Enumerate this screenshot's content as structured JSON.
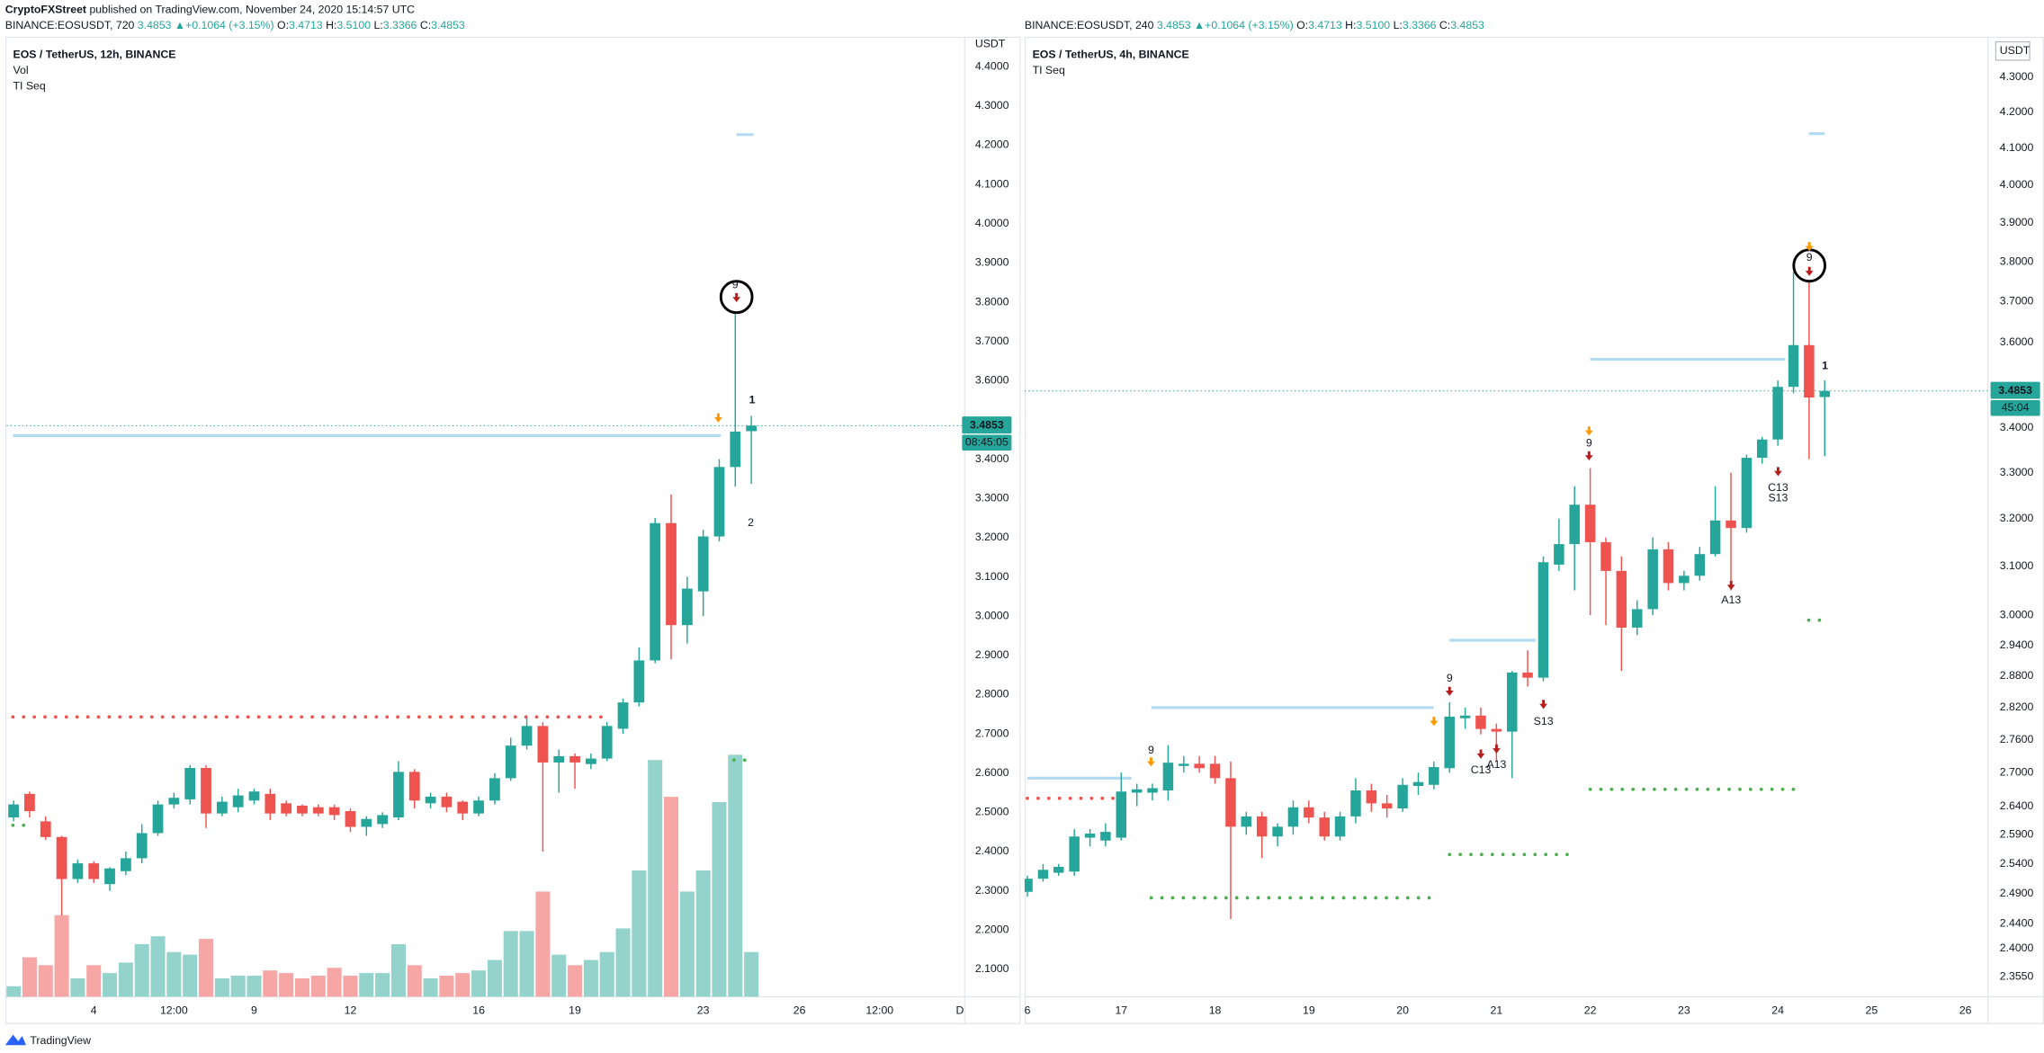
{
  "header": {
    "publisher": "CryptoFXStreet",
    "published": "published on TradingView.com, November 24, 2020 15:14:57 UTC"
  },
  "footer": {
    "brand": "TradingView"
  },
  "chart_data": [
    {
      "type": "candlestick",
      "symbol": "BINANCE:EOSUSDT, 720",
      "quote": {
        "last": "3.4853",
        "change": "▲+0.1064 (+3.15%)",
        "ohlc": [
          {
            "label": "O:",
            "value": "3.4713"
          },
          {
            "label": "H:",
            "value": "3.5100"
          },
          {
            "label": "L:",
            "value": "3.3366"
          },
          {
            "label": "C:",
            "value": "3.4853"
          }
        ]
      },
      "legend": [
        "EOS / TetherUS, 12h, BINANCE",
        "Vol",
        "TI Seq"
      ],
      "currency": "USDT",
      "countdown": "08:45:05",
      "up_color": "#26a69a",
      "down_color": "#ef5350",
      "volume_up_color": "#93d3cc",
      "volume_down_color": "#f5a6a5",
      "log": false,
      "grid": false,
      "x": [
        1.5,
        2,
        2.5,
        3,
        3.5,
        4,
        4.5,
        5,
        5.5,
        6,
        6.5,
        7,
        7.5,
        8,
        8.5,
        9,
        9.5,
        10,
        10.5,
        11,
        11.5,
        12,
        12.5,
        13,
        13.5,
        14,
        14.5,
        15,
        15.5,
        16,
        16.5,
        17,
        17.5,
        18,
        18.5,
        19,
        19.5,
        20,
        20.5,
        21,
        21.5,
        22,
        22.5,
        23,
        23.5,
        24,
        24.5
      ],
      "open": [
        2.487,
        2.547,
        2.477,
        2.437,
        2.33,
        2.37,
        2.317,
        2.35,
        2.383,
        2.447,
        2.52,
        2.533,
        2.613,
        2.497,
        2.513,
        2.53,
        2.547,
        2.523,
        2.517,
        2.513,
        2.513,
        2.503,
        2.463,
        2.47,
        2.487,
        2.603,
        2.523,
        2.54,
        2.527,
        2.497,
        2.53,
        2.587,
        2.67,
        2.72,
        2.627,
        2.643,
        2.623,
        2.637,
        2.713,
        2.78,
        2.887,
        3.237,
        2.977,
        3.063,
        3.203,
        3.38,
        3.4713
      ],
      "high": [
        2.53,
        2.553,
        2.49,
        2.44,
        2.38,
        2.375,
        2.36,
        2.4,
        2.47,
        2.53,
        2.55,
        2.62,
        2.62,
        2.54,
        2.56,
        2.56,
        2.56,
        2.53,
        2.52,
        2.52,
        2.52,
        2.51,
        2.49,
        2.5,
        2.63,
        2.61,
        2.55,
        2.55,
        2.53,
        2.54,
        2.6,
        2.69,
        2.74,
        2.73,
        2.66,
        2.65,
        2.65,
        2.73,
        2.79,
        2.92,
        3.25,
        3.31,
        3.1,
        3.22,
        3.4,
        3.77,
        3.51
      ],
      "low": [
        2.477,
        2.487,
        2.43,
        2.237,
        2.32,
        2.32,
        2.3,
        2.34,
        2.37,
        2.44,
        2.51,
        2.52,
        2.46,
        2.49,
        2.5,
        2.52,
        2.48,
        2.49,
        2.49,
        2.49,
        2.48,
        2.45,
        2.44,
        2.46,
        2.48,
        2.51,
        2.51,
        2.5,
        2.48,
        2.49,
        2.52,
        2.58,
        2.66,
        2.4,
        2.55,
        2.56,
        2.61,
        2.63,
        2.7,
        2.77,
        2.88,
        2.89,
        2.93,
        3.0,
        3.19,
        3.33,
        3.3366
      ],
      "close": [
        2.52,
        2.503,
        2.437,
        2.33,
        2.37,
        2.33,
        2.357,
        2.383,
        2.447,
        2.52,
        2.537,
        2.613,
        2.497,
        2.527,
        2.543,
        2.553,
        2.497,
        2.497,
        2.497,
        2.497,
        2.493,
        2.463,
        2.483,
        2.493,
        2.603,
        2.53,
        2.54,
        2.513,
        2.497,
        2.53,
        2.587,
        2.67,
        2.72,
        2.627,
        2.643,
        2.627,
        2.637,
        2.72,
        2.78,
        2.887,
        3.237,
        2.977,
        3.07,
        3.203,
        3.38,
        3.47,
        3.4853
      ],
      "volume": [
        8,
        30,
        24,
        62,
        14,
        24,
        18,
        26,
        40,
        46,
        34,
        32,
        44,
        14,
        16,
        16,
        20,
        18,
        14,
        16,
        22,
        16,
        18,
        18,
        40,
        24,
        14,
        16,
        18,
        20,
        28,
        50,
        50,
        80,
        32,
        24,
        28,
        34,
        52,
        96,
        180,
        152,
        80,
        96,
        148,
        184,
        34
      ],
      "xlim": [
        1.28,
        31.15
      ],
      "xticks": [
        4,
        {
          "value": 6.5,
          "label": "12:00"
        },
        9,
        12,
        16,
        19,
        23,
        26,
        {
          "value": 28.5,
          "label": "12:00"
        },
        {
          "value": 31,
          "label": "D"
        }
      ],
      "ylim": [
        2.03,
        4.47
      ],
      "yticks": [
        {
          "value": 4.4,
          "label": "4.4000"
        },
        {
          "value": 4.3,
          "label": "4.3000"
        },
        {
          "value": 4.2,
          "label": "4.2000"
        },
        {
          "value": 4.1,
          "label": "4.1000"
        },
        {
          "value": 4.0,
          "label": "4.0000"
        },
        {
          "value": 3.9,
          "label": "3.9000"
        },
        {
          "value": 3.8,
          "label": "3.8000"
        },
        {
          "value": 3.7,
          "label": "3.7000"
        },
        {
          "value": 3.6,
          "label": "3.6000"
        },
        {
          "value": 3.4,
          "label": "3.4000"
        },
        {
          "value": 3.3,
          "label": "3.3000"
        },
        {
          "value": 3.2,
          "label": "3.2000"
        },
        {
          "value": 3.1,
          "label": "3.1000"
        },
        {
          "value": 3.0,
          "label": "3.0000"
        },
        {
          "value": 2.9,
          "label": "2.9000"
        },
        {
          "value": 2.8,
          "label": "2.8000"
        },
        {
          "value": 2.7,
          "label": "2.7000"
        },
        {
          "value": 2.6,
          "label": "2.6000"
        },
        {
          "value": 2.5,
          "label": "2.5000"
        },
        {
          "value": 2.4,
          "label": "2.4000"
        },
        {
          "value": 2.3,
          "label": "2.3000"
        },
        {
          "value": 2.2,
          "label": "2.2000"
        },
        {
          "value": 2.1,
          "label": "2.1000"
        }
      ],
      "levels": [
        {
          "value": 3.46,
          "from": 1.48,
          "to": 23.55,
          "color": "#b3dcf2",
          "style": "solid"
        },
        {
          "value": 4.227,
          "from": 24.04,
          "to": 24.57,
          "color": "#b3dcf2",
          "style": "solid"
        },
        {
          "value": 2.743,
          "from": 1.48,
          "to": 20.06,
          "color": "#ef5350",
          "style": "dotted"
        },
        {
          "value": 2.467,
          "from": 1.48,
          "to": 2.09,
          "color": "#4caf50",
          "style": "dotted"
        },
        {
          "value": 2.633,
          "from": 23.96,
          "to": 24.53,
          "color": "#4caf50",
          "style": "dotted"
        }
      ],
      "annotations": [
        {
          "text": "9",
          "color": "#4caf50"
        },
        {
          "text": "1",
          "color": "#22b573"
        },
        {
          "text": "2",
          "color": "#22b573"
        }
      ]
    },
    {
      "type": "candlestick",
      "symbol": "BINANCE:EOSUSDT, 240",
      "quote": {
        "last": "3.4853",
        "change": "▲+0.1064 (+3.15%)",
        "ohlc": [
          {
            "label": "O:",
            "value": "3.4713"
          },
          {
            "label": "H:",
            "value": "3.5100"
          },
          {
            "label": "L:",
            "value": "3.3366"
          },
          {
            "label": "C:",
            "value": "3.4853"
          }
        ]
      },
      "legend": [
        "EOS / TetherUS, 4h, BINANCE",
        "TI Seq"
      ],
      "currency": "USDT",
      "countdown": "45:04",
      "up_color": "#26a69a",
      "down_color": "#ef5350",
      "log": true,
      "grid": false,
      "x": [
        16,
        16.167,
        16.333,
        16.5,
        16.667,
        16.833,
        17,
        17.167,
        17.333,
        17.5,
        17.667,
        17.833,
        18,
        18.167,
        18.333,
        18.5,
        18.667,
        18.833,
        19,
        19.167,
        19.333,
        19.5,
        19.667,
        19.833,
        20,
        20.167,
        20.333,
        20.5,
        20.667,
        20.833,
        21,
        21.167,
        21.333,
        21.5,
        21.667,
        21.833,
        22,
        22.167,
        22.333,
        22.5,
        22.667,
        22.833,
        23,
        23.167,
        23.333,
        23.5,
        23.667,
        23.833,
        24,
        24.167,
        24.333,
        24.5
      ],
      "open": [
        2.493,
        2.515,
        2.525,
        2.527,
        2.585,
        2.58,
        2.585,
        2.664,
        2.664,
        2.668,
        2.712,
        2.716,
        2.716,
        2.69,
        2.604,
        2.622,
        2.587,
        2.604,
        2.638,
        2.62,
        2.587,
        2.622,
        2.668,
        2.645,
        2.636,
        2.676,
        2.678,
        2.708,
        2.8,
        2.805,
        2.78,
        2.775,
        2.887,
        2.877,
        3.103,
        3.146,
        3.23,
        3.15,
        3.09,
        2.975,
        3.012,
        3.135,
        3.065,
        3.08,
        3.125,
        3.196,
        3.18,
        3.333,
        3.374,
        3.495,
        3.594,
        3.4713
      ],
      "high": [
        2.52,
        2.54,
        2.54,
        2.6,
        2.6,
        2.61,
        2.7,
        2.68,
        2.68,
        2.75,
        2.73,
        2.73,
        2.73,
        2.72,
        2.63,
        2.63,
        2.61,
        2.65,
        2.65,
        2.63,
        2.63,
        2.69,
        2.68,
        2.66,
        2.69,
        2.7,
        2.72,
        2.83,
        2.82,
        2.82,
        2.79,
        2.89,
        2.93,
        3.12,
        3.2,
        3.27,
        3.31,
        3.16,
        3.12,
        3.03,
        3.16,
        3.15,
        3.09,
        3.14,
        3.27,
        3.3,
        3.34,
        3.38,
        3.51,
        3.774,
        3.75,
        3.51
      ],
      "low": [
        2.485,
        2.51,
        2.52,
        2.52,
        2.57,
        2.57,
        2.58,
        2.64,
        2.65,
        2.65,
        2.7,
        2.7,
        2.68,
        2.448,
        2.59,
        2.55,
        2.57,
        2.59,
        2.61,
        2.58,
        2.58,
        2.61,
        2.63,
        2.62,
        2.63,
        2.66,
        2.67,
        2.7,
        2.78,
        2.77,
        2.72,
        2.69,
        2.86,
        2.87,
        3.09,
        3.05,
        3.0,
        2.98,
        2.89,
        2.96,
        3.0,
        3.05,
        3.05,
        3.07,
        3.12,
        3.05,
        3.17,
        3.32,
        3.36,
        3.48,
        3.33,
        3.3366
      ],
      "close": [
        2.515,
        2.53,
        2.535,
        2.587,
        2.592,
        2.595,
        2.666,
        2.67,
        2.672,
        2.718,
        2.716,
        2.708,
        2.69,
        2.604,
        2.622,
        2.587,
        2.604,
        2.638,
        2.62,
        2.587,
        2.622,
        2.668,
        2.645,
        2.636,
        2.678,
        2.683,
        2.71,
        2.803,
        2.805,
        2.78,
        2.775,
        2.887,
        2.877,
        3.108,
        3.146,
        3.23,
        3.15,
        3.09,
        2.975,
        3.012,
        3.135,
        3.065,
        3.08,
        3.125,
        3.196,
        3.18,
        3.333,
        3.374,
        3.495,
        3.594,
        3.47,
        3.4853
      ],
      "xlim": [
        15.97,
        26.24
      ],
      "xticks": [
        {
          "value": 16,
          "label": "6"
        },
        17,
        18,
        19,
        20,
        21,
        22,
        23,
        24,
        25,
        26
      ],
      "ylim": [
        2.324,
        4.41
      ],
      "yticks": [
        {
          "value": 4.3,
          "label": "4.3000"
        },
        {
          "value": 4.2,
          "label": "4.2000"
        },
        {
          "value": 4.1,
          "label": "4.1000"
        },
        {
          "value": 4.0,
          "label": "4.0000"
        },
        {
          "value": 3.9,
          "label": "3.9000"
        },
        {
          "value": 3.8,
          "label": "3.8000"
        },
        {
          "value": 3.7,
          "label": "3.7000"
        },
        {
          "value": 3.6,
          "label": "3.6000"
        },
        {
          "value": 3.4,
          "label": "3.4000"
        },
        {
          "value": 3.3,
          "label": "3.3000"
        },
        {
          "value": 3.2,
          "label": "3.2000"
        },
        {
          "value": 3.1,
          "label": "3.1000"
        },
        {
          "value": 3.0,
          "label": "3.0000"
        },
        {
          "value": 2.94,
          "label": "2.9400"
        },
        {
          "value": 2.88,
          "label": "2.8800"
        },
        {
          "value": 2.82,
          "label": "2.8200"
        },
        {
          "value": 2.76,
          "label": "2.7600"
        },
        {
          "value": 2.7,
          "label": "2.7000"
        },
        {
          "value": 2.64,
          "label": "2.6400"
        },
        {
          "value": 2.59,
          "label": "2.5900"
        },
        {
          "value": 2.54,
          "label": "2.5400"
        },
        {
          "value": 2.49,
          "label": "2.4900"
        },
        {
          "value": 2.44,
          "label": "2.4400"
        },
        {
          "value": 2.4,
          "label": "2.4000"
        },
        {
          "value": 2.355,
          "label": "2.3550"
        }
      ],
      "levels": [
        {
          "value": 2.69,
          "from": 16.0,
          "to": 17.11,
          "color": "#b3dcf2",
          "style": "solid"
        },
        {
          "value": 2.654,
          "from": 16.0,
          "to": 17.11,
          "color": "#ef5350",
          "style": "dotted"
        },
        {
          "value": 2.82,
          "from": 17.32,
          "to": 20.33,
          "color": "#b3dcf2",
          "style": "solid"
        },
        {
          "value": 2.483,
          "from": 17.32,
          "to": 20.33,
          "color": "#4caf50",
          "style": "dotted"
        },
        {
          "value": 2.95,
          "from": 20.5,
          "to": 21.42,
          "color": "#b3dcf2",
          "style": "solid"
        },
        {
          "value": 2.556,
          "from": 20.5,
          "to": 21.86,
          "color": "#4caf50",
          "style": "dotted"
        },
        {
          "value": 3.56,
          "from": 22.0,
          "to": 24.08,
          "color": "#b3dcf2",
          "style": "solid"
        },
        {
          "value": 2.67,
          "from": 22.0,
          "to": 24.22,
          "color": "#4caf50",
          "style": "dotted"
        },
        {
          "value": 4.14,
          "from": 24.33,
          "to": 24.5,
          "color": "#b3dcf2",
          "style": "solid"
        },
        {
          "value": 2.99,
          "from": 24.33,
          "to": 24.5,
          "color": "#4caf50",
          "style": "dotted"
        }
      ],
      "annotations": [
        {
          "text": "9",
          "color": "#4caf50"
        },
        {
          "text": "9",
          "color": "#4caf50"
        },
        {
          "text": "9",
          "color": "#4caf50"
        },
        {
          "text": "C13",
          "color": "#e040fb"
        },
        {
          "text": "A13",
          "color": "#42a5f5"
        },
        {
          "text": "S13",
          "color": "#ff9800"
        },
        {
          "text": "A13",
          "color": "#42a5f5"
        },
        {
          "text": "C13",
          "color": "#e040fb"
        },
        {
          "text": "S13",
          "color": "#ff9800"
        },
        {
          "text": "1",
          "color": "#22b573"
        },
        {
          "text": "9",
          "color": "#4caf50"
        }
      ]
    }
  ]
}
